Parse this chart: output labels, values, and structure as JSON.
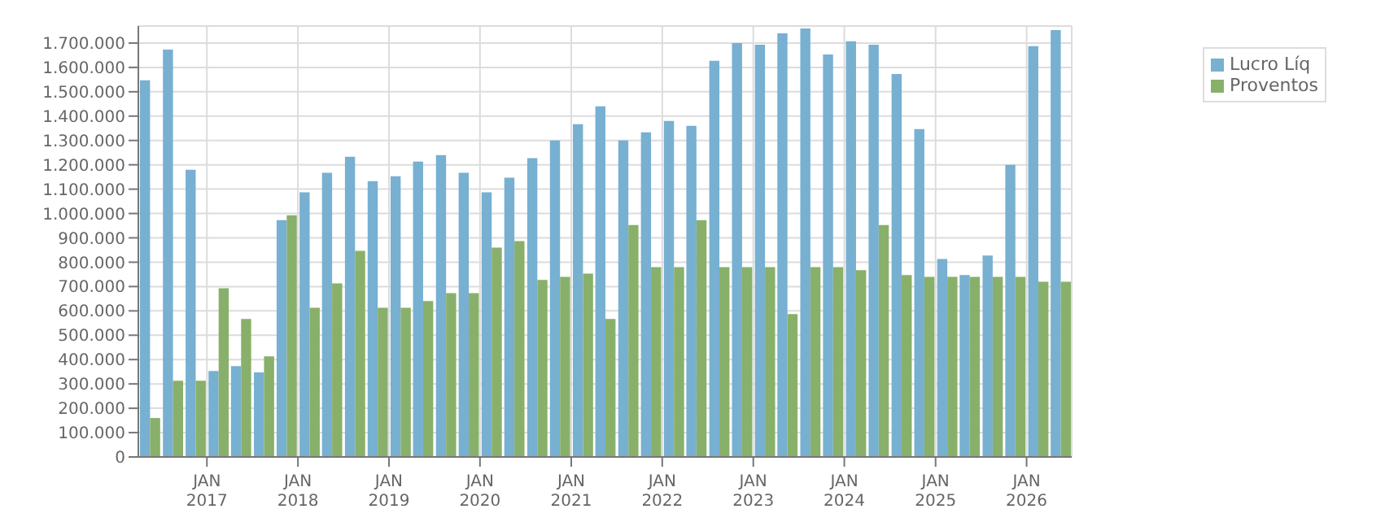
{
  "chart_data": {
    "type": "bar",
    "x": [
      "2016-05-16",
      "2016-08-16",
      "2016-11-15",
      "2017-02-15",
      "2017-05-16",
      "2017-08-16",
      "2017-11-15",
      "2018-02-15",
      "2018-05-16",
      "2018-08-16",
      "2018-11-15",
      "2019-02-15",
      "2019-05-16",
      "2019-08-16",
      "2019-11-15",
      "2020-02-15",
      "2020-05-16",
      "2020-08-16",
      "2020-11-15",
      "2021-02-15",
      "2021-05-16",
      "2021-08-16",
      "2021-11-15",
      "2022-02-15",
      "2022-05-16",
      "2022-08-16",
      "2022-11-15",
      "2023-02-15",
      "2023-05-16",
      "2023-08-16",
      "2023-11-15",
      "2024-02-15",
      "2024-05-16",
      "2024-08-16",
      "2024-11-15",
      "2025-02-15",
      "2025-05-16",
      "2025-08-16",
      "2025-11-15",
      "2026-02-15",
      "2026-05-16"
    ],
    "series": [
      {
        "name": "Lucro Líq",
        "color": "#77b0d1",
        "values": [
          1547000,
          1673000,
          1180000,
          353000,
          373000,
          347000,
          973000,
          1087000,
          1167000,
          1233000,
          1133000,
          1153000,
          1213000,
          1240000,
          1167000,
          1087000,
          1147000,
          1227000,
          1300000,
          1367000,
          1440000,
          1300000,
          1333000,
          1380000,
          1360000,
          1627000,
          1700000,
          1693000,
          1740000,
          1760000,
          1653000,
          1707000,
          1693000,
          1573000,
          1347000,
          813000,
          747000,
          827000,
          1200000,
          1687000,
          1753000
        ]
      },
      {
        "name": "Proventos",
        "color": "#88b06a",
        "values": [
          160000,
          313000,
          313000,
          693000,
          567000,
          413000,
          993000,
          613000,
          713000,
          847000,
          613000,
          613000,
          640000,
          673000,
          673000,
          860000,
          887000,
          727000,
          740000,
          753000,
          567000,
          953000,
          780000,
          780000,
          973000,
          780000,
          780000,
          780000,
          587000,
          780000,
          780000,
          767000,
          953000,
          747000,
          740000,
          740000,
          740000,
          740000,
          740000,
          720000,
          720000
        ]
      }
    ],
    "xlim": [
      "2016-04-01",
      "2026-07-01"
    ],
    "xticks": [
      {
        "value": "2017-01-01",
        "label": "JAN 2017"
      },
      {
        "value": "2018-01-01",
        "label": "JAN 2018"
      },
      {
        "value": "2019-01-01",
        "label": "JAN 2019"
      },
      {
        "value": "2020-01-01",
        "label": "JAN 2020"
      },
      {
        "value": "2021-01-01",
        "label": "JAN 2021"
      },
      {
        "value": "2022-01-01",
        "label": "JAN 2022"
      },
      {
        "value": "2023-01-01",
        "label": "JAN 2023"
      },
      {
        "value": "2024-01-01",
        "label": "JAN 2024"
      },
      {
        "value": "2025-01-01",
        "label": "JAN 2025"
      },
      {
        "value": "2026-01-01",
        "label": "JAN 2026"
      }
    ],
    "ylim": [
      0,
      1770000
    ],
    "yticks": [
      0,
      {
        "value": 100000,
        "label": "100.000"
      },
      {
        "value": 200000,
        "label": "200.000"
      },
      {
        "value": 300000,
        "label": "300.000"
      },
      {
        "value": 400000,
        "label": "400.000"
      },
      {
        "value": 500000,
        "label": "500.000"
      },
      {
        "value": 600000,
        "label": "600.000"
      },
      {
        "value": 700000,
        "label": "700.000"
      },
      {
        "value": 800000,
        "label": "800.000"
      },
      {
        "value": 900000,
        "label": "900.000"
      },
      {
        "value": 1000000,
        "label": "1.000.000"
      },
      {
        "value": 1100000,
        "label": "1.100.000"
      },
      {
        "value": 1200000,
        "label": "1.200.000"
      },
      {
        "value": 1300000,
        "label": "1.300.000"
      },
      {
        "value": 1400000,
        "label": "1.400.000"
      },
      {
        "value": 1500000,
        "label": "1.500.000"
      },
      {
        "value": 1600000,
        "label": "1.600.000"
      },
      {
        "value": 1700000,
        "label": "1.700.000"
      }
    ],
    "grid": true,
    "legend": "top right"
  }
}
